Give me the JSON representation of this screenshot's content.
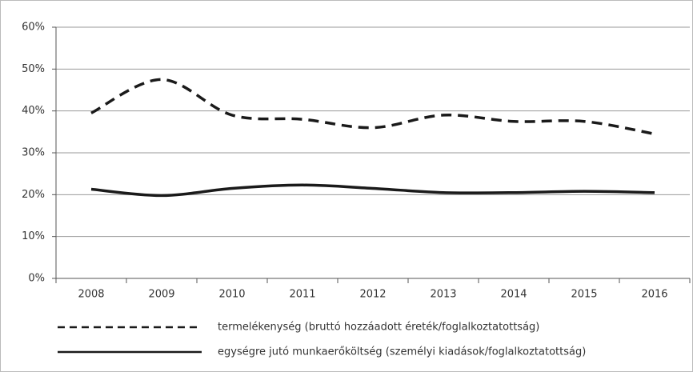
{
  "chart_data": {
    "type": "line",
    "categories": [
      "2008",
      "2009",
      "2010",
      "2011",
      "2012",
      "2013",
      "2014",
      "2015",
      "2016"
    ],
    "series": [
      {
        "name": "termelékenység (bruttó hozzáadott éreték/foglalkoztatottság)",
        "color": "#1a1a1a",
        "dash": true,
        "values": [
          39.5,
          47.5,
          39,
          38,
          36,
          39,
          37.5,
          37.5,
          34.5
        ]
      },
      {
        "name": "egységre jutó munkaerőköltség (személyi kiadások/foglalkoztatottság)",
        "color": "#1a1a1a",
        "dash": false,
        "values": [
          21.3,
          19.8,
          21.5,
          22.3,
          21.5,
          20.5,
          20.5,
          20.8,
          20.5
        ]
      }
    ],
    "ylim": [
      0,
      60
    ],
    "yticks": [
      {
        "value": 0,
        "label": "0%"
      },
      {
        "value": 10,
        "label": "10%"
      },
      {
        "value": 20,
        "label": "20%"
      },
      {
        "value": 30,
        "label": "30%"
      },
      {
        "value": 40,
        "label": "40%"
      },
      {
        "value": 50,
        "label": "50%"
      },
      {
        "value": 60,
        "label": "60%"
      }
    ],
    "grid": true,
    "smooth": true,
    "legend": "bottom"
  }
}
